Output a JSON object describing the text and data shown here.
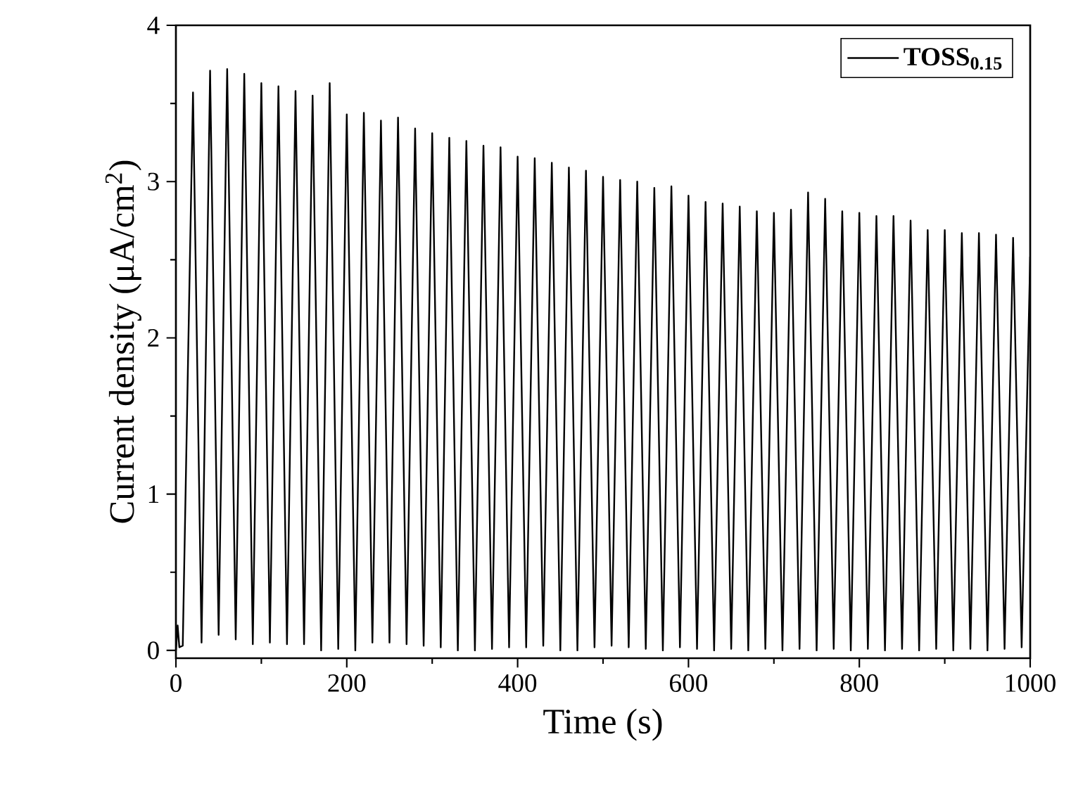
{
  "chart_data": {
    "type": "line",
    "xlabel": "Time (s)",
    "ylabel": "Current density (μA/cm$^{2}$)",
    "xlim": [
      0,
      1000
    ],
    "ylim": [
      -0.05,
      4
    ],
    "xticks": [
      0,
      200,
      400,
      600,
      800,
      1000
    ],
    "yticks": [
      0,
      1,
      2,
      3,
      4
    ],
    "legend": "top right",
    "grid": false,
    "marker": "none",
    "line_style": "solid",
    "series": [
      {
        "name": "TOSS$_{0.15}$",
        "color": "#000000",
        "x": [
          0,
          2,
          4,
          8,
          20,
          30,
          40,
          50,
          60,
          70,
          80,
          90,
          100,
          110,
          120,
          130,
          140,
          150,
          160,
          170,
          180,
          190,
          200,
          210,
          220,
          230,
          240,
          250,
          260,
          270,
          280,
          290,
          300,
          310,
          320,
          330,
          340,
          350,
          360,
          370,
          380,
          390,
          400,
          410,
          420,
          430,
          440,
          450,
          460,
          470,
          480,
          490,
          500,
          510,
          520,
          530,
          540,
          550,
          560,
          570,
          580,
          590,
          600,
          610,
          620,
          630,
          640,
          650,
          660,
          670,
          680,
          690,
          700,
          710,
          720,
          730,
          740,
          750,
          760,
          770,
          780,
          790,
          800,
          810,
          820,
          830,
          840,
          850,
          860,
          870,
          880,
          890,
          900,
          910,
          920,
          930,
          940,
          950,
          960,
          970,
          980,
          990,
          1000
        ],
        "values": [
          0,
          0.16,
          0.02,
          0.03,
          3.57,
          0.05,
          3.71,
          0.1,
          3.72,
          0.07,
          3.69,
          0.04,
          3.63,
          0.05,
          3.61,
          0.04,
          3.58,
          0.04,
          3.55,
          0.0,
          3.63,
          0.01,
          3.43,
          0.0,
          3.44,
          0.05,
          3.39,
          0.05,
          3.41,
          0.04,
          3.34,
          0.03,
          3.31,
          0.02,
          3.28,
          0.0,
          3.26,
          0.0,
          3.23,
          0.01,
          3.22,
          0.02,
          3.16,
          0.02,
          3.15,
          0.03,
          3.12,
          0.0,
          3.09,
          0.0,
          3.07,
          0.02,
          3.03,
          0.03,
          3.01,
          0.02,
          3.0,
          0.01,
          2.96,
          0.0,
          2.97,
          0.02,
          2.91,
          0.01,
          2.87,
          0.0,
          2.86,
          0.01,
          2.84,
          0.0,
          2.81,
          0.01,
          2.8,
          0.0,
          2.82,
          0.01,
          2.93,
          0.0,
          2.89,
          0.01,
          2.81,
          0.0,
          2.8,
          0.01,
          2.78,
          0.0,
          2.78,
          0.01,
          2.75,
          0.0,
          2.69,
          0.01,
          2.69,
          0.0,
          2.67,
          0.01,
          2.67,
          0.0,
          2.66,
          0.01,
          2.64,
          0.02,
          2.52
        ]
      }
    ]
  }
}
